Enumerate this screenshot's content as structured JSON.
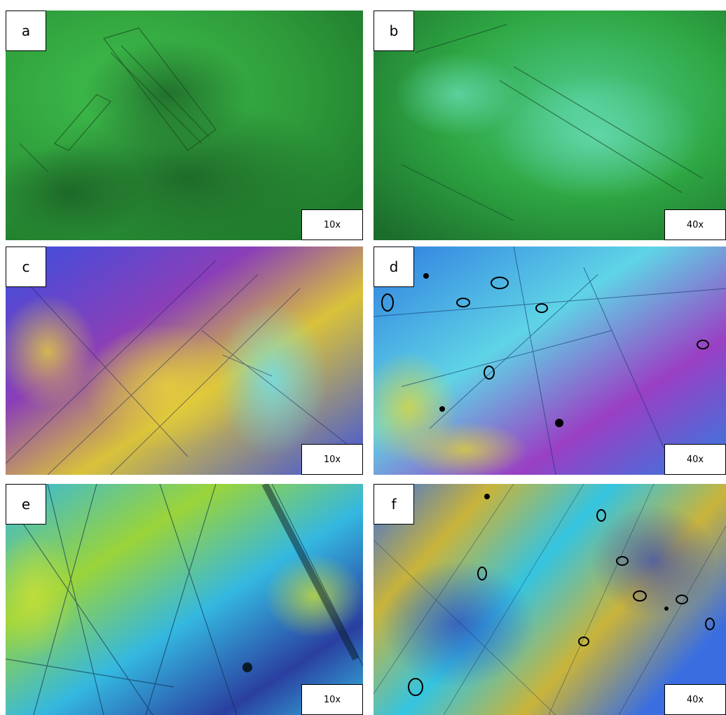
{
  "panels": [
    {
      "label": "a",
      "magnification": "10x",
      "colors": [
        "#2e9b3a",
        "#3fb84a",
        "#1f6e2a"
      ]
    },
    {
      "label": "b",
      "magnification": "40x",
      "colors": [
        "#2fa844",
        "#4dc98a",
        "#1c6e2c"
      ]
    },
    {
      "label": "c",
      "magnification": "10x",
      "colors": [
        "#3a4fe0",
        "#d9c23a",
        "#8a3fb8"
      ]
    },
    {
      "label": "d",
      "magnification": "40x",
      "colors": [
        "#2f7de0",
        "#5fd4e6",
        "#9a3fc4"
      ]
    },
    {
      "label": "e",
      "magnification": "10x",
      "colors": [
        "#34b8e0",
        "#9ad43a",
        "#2a3fa0"
      ]
    },
    {
      "label": "f",
      "magnification": "40x",
      "colors": [
        "#3a6ee0",
        "#c9b43a",
        "#34c4e0"
      ]
    }
  ]
}
